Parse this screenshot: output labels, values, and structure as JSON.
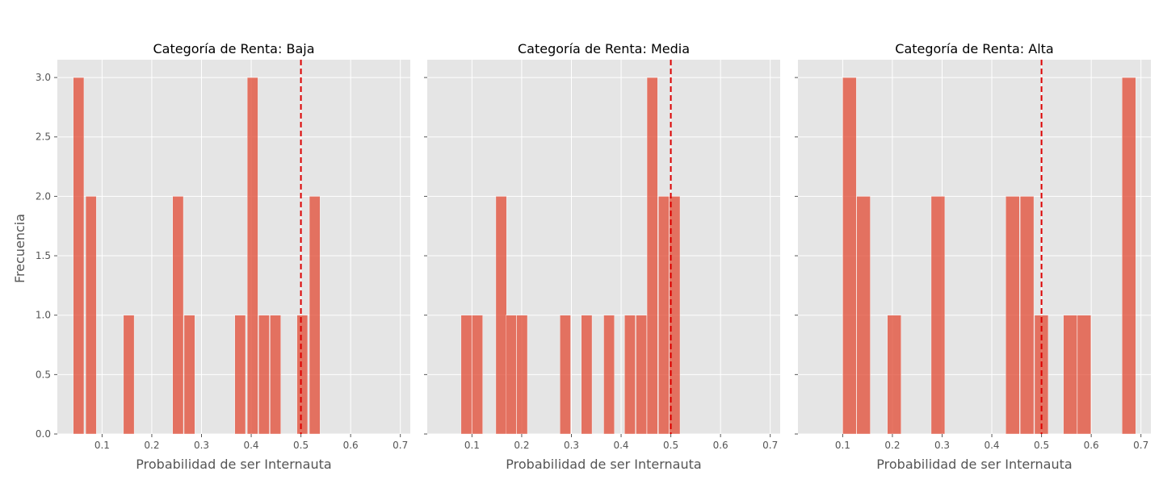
{
  "colors": {
    "panel_background": "#e5e5e5",
    "grid": "#ffffff",
    "bar": "#e24a33",
    "threshold_line": "#dd0000",
    "tick_text": "#555555"
  },
  "shared": {
    "ylabel": "Frecuencia",
    "xlabel": "Probabilidad de ser Internauta"
  },
  "chart_data": [
    {
      "type": "bar",
      "title": "Categoría de Renta: Baja",
      "xlabel": "Probabilidad de ser Internauta",
      "ylabel": "Frecuencia",
      "xlim": [
        0.01,
        0.72
      ],
      "ylim": [
        0,
        3.15
      ],
      "xticks": [
        0.1,
        0.2,
        0.3,
        0.4,
        0.5,
        0.6,
        0.7
      ],
      "xtick_labels": [
        "0.1",
        "0.2",
        "0.3",
        "0.4",
        "0.5",
        "0.6",
        "0.7"
      ],
      "yticks": [
        0,
        0.5,
        1,
        1.5,
        2,
        2.5,
        3
      ],
      "ytick_labels": [
        "0.0",
        "0.5",
        "1.0",
        "1.5",
        "2.0",
        "2.5",
        "3.0"
      ],
      "threshold_x": 0.5,
      "bin_width": 0.0225,
      "bins": [
        {
          "start": 0.042,
          "count": 3
        },
        {
          "start": 0.067,
          "count": 2
        },
        {
          "start": 0.143,
          "count": 1
        },
        {
          "start": 0.242,
          "count": 2
        },
        {
          "start": 0.265,
          "count": 1
        },
        {
          "start": 0.367,
          "count": 1
        },
        {
          "start": 0.392,
          "count": 3
        },
        {
          "start": 0.415,
          "count": 1
        },
        {
          "start": 0.438,
          "count": 1
        },
        {
          "start": 0.492,
          "count": 1
        },
        {
          "start": 0.517,
          "count": 2
        }
      ]
    },
    {
      "type": "bar",
      "title": "Categoría de Renta: Media",
      "xlabel": "Probabilidad de ser Internauta",
      "ylabel": "Frecuencia",
      "xlim": [
        0.01,
        0.72
      ],
      "ylim": [
        0,
        3.15
      ],
      "xticks": [
        0.1,
        0.2,
        0.3,
        0.4,
        0.5,
        0.6,
        0.7
      ],
      "xtick_labels": [
        "0.1",
        "0.2",
        "0.3",
        "0.4",
        "0.5",
        "0.6",
        "0.7"
      ],
      "yticks": [
        0,
        0.5,
        1,
        1.5,
        2,
        2.5,
        3
      ],
      "ytick_labels": [
        "0.0",
        "0.5",
        "1.0",
        "1.5",
        "2.0",
        "2.5",
        "3.0"
      ],
      "threshold_x": 0.5,
      "bin_width": 0.0225,
      "bins": [
        {
          "start": 0.078,
          "count": 1
        },
        {
          "start": 0.1,
          "count": 1
        },
        {
          "start": 0.148,
          "count": 2
        },
        {
          "start": 0.168,
          "count": 1
        },
        {
          "start": 0.19,
          "count": 1
        },
        {
          "start": 0.277,
          "count": 1
        },
        {
          "start": 0.32,
          "count": 1
        },
        {
          "start": 0.365,
          "count": 1
        },
        {
          "start": 0.407,
          "count": 1
        },
        {
          "start": 0.43,
          "count": 1
        },
        {
          "start": 0.452,
          "count": 3
        },
        {
          "start": 0.475,
          "count": 2
        },
        {
          "start": 0.497,
          "count": 2
        }
      ]
    },
    {
      "type": "bar",
      "title": "Categoría de Renta: Alta",
      "xlabel": "Probabilidad de ser Internauta",
      "ylabel": "Frecuencia",
      "xlim": [
        0.01,
        0.72
      ],
      "ylim": [
        0,
        3.15
      ],
      "xticks": [
        0.1,
        0.2,
        0.3,
        0.4,
        0.5,
        0.6,
        0.7
      ],
      "xtick_labels": [
        "0.1",
        "0.2",
        "0.3",
        "0.4",
        "0.5",
        "0.6",
        "0.7"
      ],
      "yticks": [
        0,
        0.5,
        1,
        1.5,
        2,
        2.5,
        3
      ],
      "ytick_labels": [
        "0.0",
        "0.5",
        "1.0",
        "1.5",
        "2.0",
        "2.5",
        "3.0"
      ],
      "threshold_x": 0.5,
      "bin_width": 0.0285,
      "bins": [
        {
          "start": 0.1,
          "count": 3
        },
        {
          "start": 0.128,
          "count": 2
        },
        {
          "start": 0.19,
          "count": 1
        },
        {
          "start": 0.278,
          "count": 2
        },
        {
          "start": 0.428,
          "count": 2
        },
        {
          "start": 0.457,
          "count": 2
        },
        {
          "start": 0.486,
          "count": 1
        },
        {
          "start": 0.544,
          "count": 1
        },
        {
          "start": 0.572,
          "count": 1
        },
        {
          "start": 0.662,
          "count": 3
        }
      ]
    }
  ]
}
